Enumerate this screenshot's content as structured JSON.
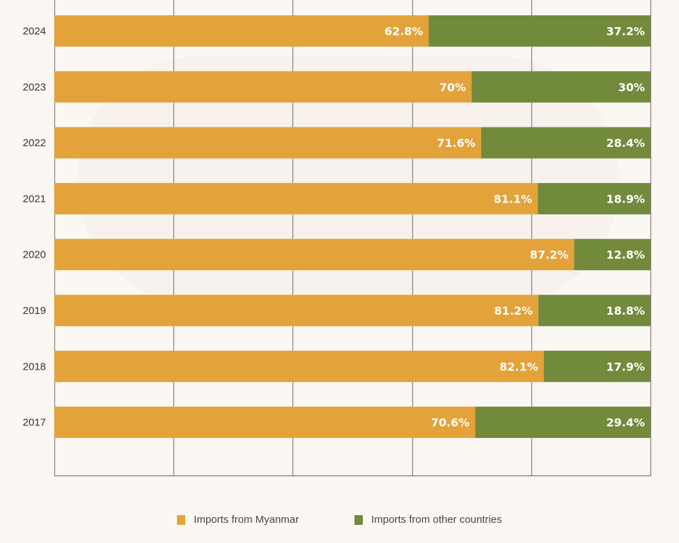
{
  "chart_data": {
    "type": "bar",
    "orientation": "horizontal",
    "stacked": true,
    "categories": [
      "2024",
      "2023",
      "2022",
      "2021",
      "2020",
      "2019",
      "2018",
      "2017"
    ],
    "series": [
      {
        "name": "Imports from Myanmar",
        "color": "#e3a23a",
        "values": [
          62.8,
          70,
          71.6,
          81.1,
          87.2,
          81.2,
          82.1,
          70.6
        ],
        "labels": [
          "62.8%",
          "70%",
          "71.6%",
          "81.1%",
          "87.2%",
          "81.2%",
          "82.1%",
          "70.6%"
        ]
      },
      {
        "name": "Imports from other countries",
        "color": "#728a3c",
        "values": [
          37.2,
          30,
          28.4,
          18.9,
          12.8,
          18.8,
          17.9,
          29.4
        ],
        "labels": [
          "37.2%",
          "30%",
          "28.4%",
          "18.9%",
          "12.8%",
          "18.8%",
          "17.9%",
          "29.4%"
        ]
      }
    ],
    "xlim": [
      0,
      100
    ],
    "grid": true,
    "grid_step": 20,
    "legend_position": "bottom-center",
    "title": "",
    "xlabel": "",
    "ylabel": ""
  },
  "legend": {
    "myanmar": "Imports from Myanmar",
    "other": "Imports from other countries"
  }
}
